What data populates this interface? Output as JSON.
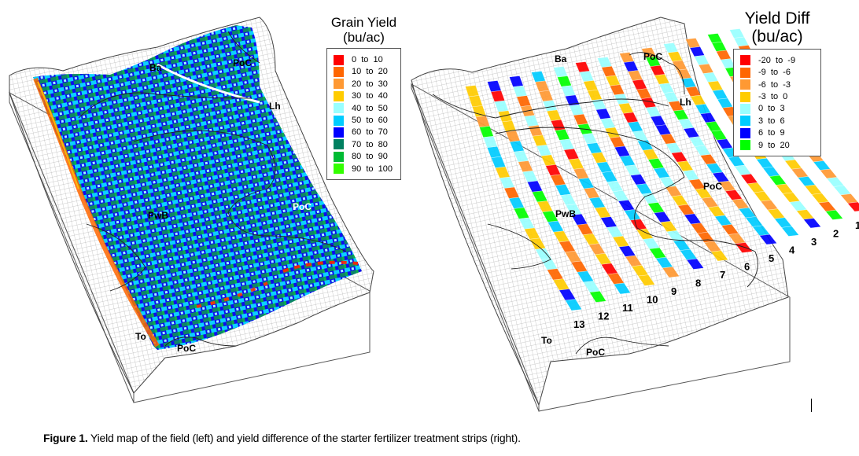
{
  "figure": {
    "caption_label": "Figure 1.",
    "caption_text": " Yield map of the field (left) and yield difference of the starter fertilizer treatment strips (right)."
  },
  "left_map": {
    "title_line1": "Grain Yield",
    "title_line2": "(bu/ac)",
    "soil_labels": [
      "Ba",
      "PoC",
      "Lh",
      "PwB",
      "PoC",
      "To",
      "PoC"
    ],
    "legend": [
      {
        "label": "0  to  10",
        "color": "#ff0000"
      },
      {
        "label": "10  to  20",
        "color": "#ff6600"
      },
      {
        "label": "20  to  30",
        "color": "#ff9933"
      },
      {
        "label": "30  to  40",
        "color": "#ffcc00"
      },
      {
        "label": "40  to  50",
        "color": "#99ffff"
      },
      {
        "label": "50  to  60",
        "color": "#00ccff"
      },
      {
        "label": "60  to  70",
        "color": "#0000ff"
      },
      {
        "label": "70  to  80",
        "color": "#008060"
      },
      {
        "label": "80  to  90",
        "color": "#00bb33"
      },
      {
        "label": "90  to  100",
        "color": "#33ff00"
      }
    ]
  },
  "right_map": {
    "title_line1": "Yield Diff",
    "title_line2": "(bu/ac)",
    "soil_labels": [
      "Ba",
      "PoC",
      "Lh",
      "PoC",
      "PwB",
      "To",
      "PoC"
    ],
    "strip_numbers": [
      "1",
      "2",
      "3",
      "4",
      "5",
      "6",
      "7",
      "8",
      "9",
      "10",
      "11",
      "12",
      "13"
    ],
    "legend": [
      {
        "label": "-20  to  -9",
        "color": "#ff0000"
      },
      {
        "label": "-9  to  -6",
        "color": "#ff6600"
      },
      {
        "label": "-6  to  -3",
        "color": "#ff9933"
      },
      {
        "label": "-3  to  0",
        "color": "#ffcc00"
      },
      {
        "label": "0  to  3",
        "color": "#99ffff"
      },
      {
        "label": "3  to  6",
        "color": "#00ccff"
      },
      {
        "label": "6  to  9",
        "color": "#0000ff"
      },
      {
        "label": "9  to  20",
        "color": "#00ff00"
      }
    ]
  },
  "chart_data": [
    {
      "type": "heatmap",
      "title": "Grain Yield (bu/ac)",
      "subtitle": "3D field yield map (left)",
      "legend_bins": [
        "0 to 10",
        "10 to 20",
        "20 to 30",
        "30 to 40",
        "40 to 50",
        "50 to 60",
        "60 to 70",
        "70 to 80",
        "80 to 90",
        "90 to 100"
      ],
      "legend_colors": [
        "#ff0000",
        "#ff6600",
        "#ff9933",
        "#ffcc00",
        "#99ffff",
        "#00ccff",
        "#0000ff",
        "#008060",
        "#00bb33",
        "#33ff00"
      ],
      "dominant_bins": [
        "50 to 60",
        "60 to 70",
        "70 to 80",
        "80 to 90"
      ],
      "annotations": [
        "Ba",
        "PoC",
        "Lh",
        "PwB",
        "PoC",
        "To",
        "PoC"
      ],
      "legend_position": "top-right"
    },
    {
      "type": "heatmap",
      "title": "Yield Diff (bu/ac)",
      "subtitle": "Starter fertilizer treatment strips (right)",
      "legend_bins": [
        "-20 to -9",
        "-9 to -6",
        "-6 to -3",
        "-3 to 0",
        "0 to 3",
        "3 to 6",
        "6 to 9",
        "9 to 20"
      ],
      "legend_colors": [
        "#ff0000",
        "#ff6600",
        "#ff9933",
        "#ffcc00",
        "#99ffff",
        "#00ccff",
        "#0000ff",
        "#00ff00"
      ],
      "strips": [
        "1",
        "2",
        "3",
        "4",
        "5",
        "6",
        "7",
        "8",
        "9",
        "10",
        "11",
        "12",
        "13"
      ],
      "annotations": [
        "Ba",
        "PoC",
        "Lh",
        "PoC",
        "PwB",
        "To",
        "PoC"
      ],
      "legend_position": "top-right"
    }
  ]
}
